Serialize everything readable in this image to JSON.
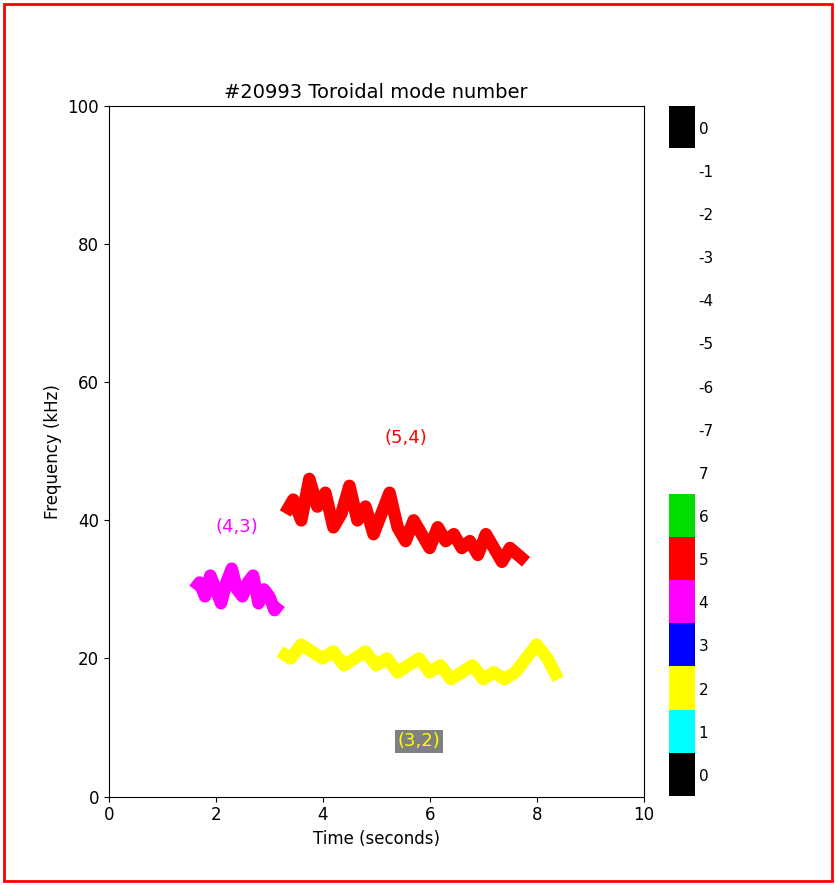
{
  "chart_data": {
    "type": "line",
    "title": "#20993 Toroidal mode number",
    "x_label": "Time (seconds)",
    "y_label": "Frequency (kHz)",
    "xlim": [
      0,
      10
    ],
    "xticks": [
      0,
      2,
      4,
      6,
      8,
      10
    ],
    "ylim": [
      0,
      100
    ],
    "yticks": [
      0,
      20,
      40,
      60,
      80,
      100
    ],
    "series": [
      {
        "name": "(4,3)",
        "color": "#ff00ff",
        "label_background": "#ffffff",
        "x": [
          1.6,
          1.7,
          1.8,
          1.9,
          2.0,
          2.1,
          2.2,
          2.3,
          2.4,
          2.5,
          2.6,
          2.7,
          2.8,
          2.9,
          3.0,
          3.1,
          3.2
        ],
        "values": [
          30,
          31,
          29,
          32,
          30,
          28,
          31,
          33,
          30,
          29,
          31,
          32,
          28,
          30,
          29,
          27,
          28
        ]
      },
      {
        "name": "(5,4)",
        "color": "#ff0000",
        "label_background": "#ffffff",
        "x": [
          3.3,
          3.45,
          3.6,
          3.75,
          3.9,
          4.05,
          4.2,
          4.35,
          4.5,
          4.65,
          4.8,
          4.95,
          5.1,
          5.25,
          5.4,
          5.55,
          5.7,
          5.85,
          6.0,
          6.15,
          6.3,
          6.45,
          6.6,
          6.75,
          6.9,
          7.05,
          7.2,
          7.35,
          7.5,
          7.65,
          7.8
        ],
        "values": [
          41,
          43,
          40,
          46,
          42,
          44,
          39,
          41,
          45,
          40,
          42,
          38,
          41,
          44,
          39,
          37,
          40,
          38,
          36,
          39,
          37,
          38,
          36,
          37,
          35,
          38,
          36,
          34,
          36,
          35,
          34
        ]
      },
      {
        "name": "(3,2)",
        "color": "#ffff00",
        "label_background": "#808080",
        "x": [
          3.2,
          3.4,
          3.6,
          3.8,
          4.0,
          4.2,
          4.4,
          4.6,
          4.8,
          5.0,
          5.2,
          5.4,
          5.6,
          5.8,
          6.0,
          6.2,
          6.4,
          6.6,
          6.8,
          7.0,
          7.2,
          7.4,
          7.6,
          7.8,
          8.0,
          8.2,
          8.4
        ],
        "values": [
          21,
          20,
          22,
          21,
          20,
          21,
          19,
          20,
          21,
          19,
          20,
          18,
          19,
          20,
          18,
          19,
          17,
          18,
          19,
          17,
          18,
          17,
          18,
          20,
          22,
          20,
          17
        ]
      }
    ],
    "colorbar_values": [
      0,
      -1,
      -2,
      -3,
      -4,
      -5,
      -6,
      -7,
      7,
      6,
      5,
      4,
      3,
      2,
      1,
      0
    ],
    "colorbar_colors": [
      "#000000",
      "#ffffff",
      "#ffffff",
      "#ffffff",
      "#ffffff",
      "#ffffff",
      "#ffffff",
      "#ffffff",
      "#ffffff",
      "#00dd00",
      "#ff0000",
      "#ff00ff",
      "#0000ff",
      "#ffff00",
      "#00ffff",
      "#000000"
    ]
  }
}
